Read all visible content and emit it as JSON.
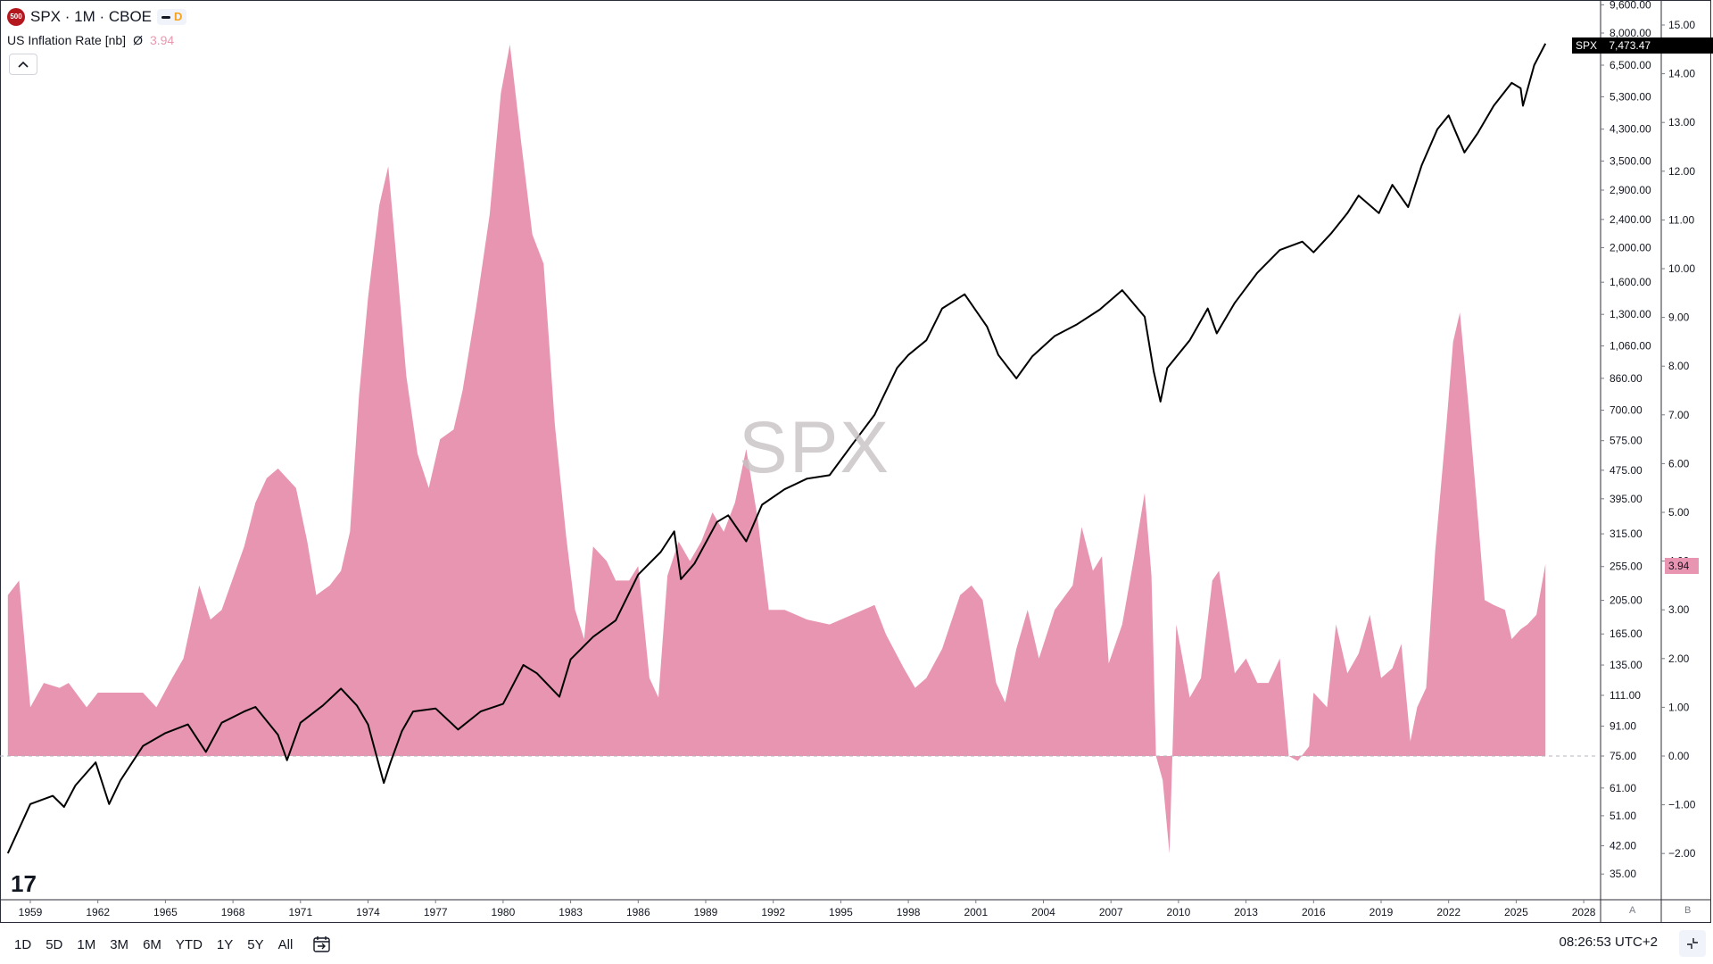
{
  "legend": {
    "symbol": "SPX · 1M · CBOE",
    "logo_text": "500",
    "chip_d": "D",
    "indicator_name": "US Inflation Rate [nb]",
    "indicator_symbol": "Ø",
    "indicator_value": "3.94",
    "collapse_icon": "chevron-up-icon"
  },
  "watermark": "SPX",
  "tv_logo": "17",
  "price_tag": {
    "symbol": "SPX",
    "value": "7,473.47"
  },
  "inflation_tag": "3.94",
  "scale_labels": {
    "a": "A",
    "b": "B"
  },
  "timeframes": [
    "1D",
    "5D",
    "1M",
    "3M",
    "6M",
    "YTD",
    "1Y",
    "5Y",
    "All"
  ],
  "clock": "08:26:53 UTC+2",
  "colors": {
    "line": "#000000",
    "area": "#e895b2",
    "tag_bg": "#000000",
    "inflation_tag_bg": "#e895b2"
  },
  "chart_data": {
    "type": "line",
    "title": "SPX · 1M · CBOE",
    "x_tick_labels": [
      "1959",
      "1962",
      "1965",
      "1968",
      "1971",
      "1974",
      "1977",
      "1980",
      "1983",
      "1986",
      "1989",
      "1992",
      "1995",
      "1998",
      "2001",
      "2004",
      "2007",
      "2010",
      "2013",
      "2016",
      "2019",
      "2022",
      "2025",
      "2028"
    ],
    "left_axis": {
      "scale": "log",
      "tick_labels": [
        "9,600.00",
        "8,000.00",
        "6,500.00",
        "5,300.00",
        "4,300.00",
        "3,500.00",
        "2,900.00",
        "2,400.00",
        "2,000.00",
        "1,600.00",
        "1,300.00",
        "1,060.00",
        "860.00",
        "700.00",
        "575.00",
        "475.00",
        "395.00",
        "315.00",
        "255.00",
        "205.00",
        "165.00",
        "135.00",
        "111.00",
        "91.00",
        "75.00",
        "61.00",
        "51.00",
        "42.00",
        "35.00"
      ]
    },
    "right_axis": {
      "scale": "linear",
      "range": [
        -2.0,
        15.0
      ],
      "tick_labels": [
        "15.00",
        "14.00",
        "13.00",
        "12.00",
        "11.00",
        "10.00",
        "9.00",
        "8.00",
        "7.00",
        "6.00",
        "5.00",
        "4.00",
        "3.00",
        "2.00",
        "1.00",
        "0.00",
        "−1.00",
        "−2.00"
      ]
    },
    "series": [
      {
        "name": "SPX",
        "type": "line",
        "axis": "left",
        "points": [
          [
            1958.0,
            40
          ],
          [
            1959.0,
            55
          ],
          [
            1960.0,
            58
          ],
          [
            1960.5,
            54
          ],
          [
            1961.0,
            62
          ],
          [
            1961.9,
            72
          ],
          [
            1962.5,
            55
          ],
          [
            1963.0,
            64
          ],
          [
            1964.0,
            80
          ],
          [
            1965.0,
            87
          ],
          [
            1966.0,
            92
          ],
          [
            1966.8,
            77
          ],
          [
            1967.5,
            93
          ],
          [
            1968.5,
            100
          ],
          [
            1969.0,
            103
          ],
          [
            1970.0,
            86
          ],
          [
            1970.4,
            73
          ],
          [
            1971.0,
            93
          ],
          [
            1972.0,
            104
          ],
          [
            1972.8,
            116
          ],
          [
            1973.5,
            104
          ],
          [
            1974.0,
            92
          ],
          [
            1974.7,
            63
          ],
          [
            1975.0,
            72
          ],
          [
            1975.5,
            88
          ],
          [
            1976.0,
            100
          ],
          [
            1977.0,
            102
          ],
          [
            1978.0,
            89
          ],
          [
            1979.0,
            100
          ],
          [
            1980.0,
            105
          ],
          [
            1980.9,
            135
          ],
          [
            1981.5,
            128
          ],
          [
            1982.5,
            110
          ],
          [
            1983.0,
            140
          ],
          [
            1984.0,
            162
          ],
          [
            1985.0,
            180
          ],
          [
            1986.0,
            242
          ],
          [
            1987.0,
            280
          ],
          [
            1987.6,
            320
          ],
          [
            1987.9,
            235
          ],
          [
            1988.5,
            260
          ],
          [
            1989.5,
            340
          ],
          [
            1990.0,
            355
          ],
          [
            1990.8,
            300
          ],
          [
            1991.5,
            380
          ],
          [
            1992.5,
            420
          ],
          [
            1993.5,
            450
          ],
          [
            1994.5,
            460
          ],
          [
            1995.5,
            560
          ],
          [
            1996.5,
            680
          ],
          [
            1997.5,
            920
          ],
          [
            1998.0,
            1000
          ],
          [
            1998.8,
            1100
          ],
          [
            1999.5,
            1350
          ],
          [
            2000.5,
            1480
          ],
          [
            2001.5,
            1200
          ],
          [
            2002.0,
            1000
          ],
          [
            2002.8,
            860
          ],
          [
            2003.5,
            990
          ],
          [
            2004.5,
            1130
          ],
          [
            2005.5,
            1220
          ],
          [
            2006.5,
            1340
          ],
          [
            2007.5,
            1520
          ],
          [
            2008.5,
            1280
          ],
          [
            2008.9,
            900
          ],
          [
            2009.2,
            740
          ],
          [
            2009.5,
            920
          ],
          [
            2010.5,
            1100
          ],
          [
            2011.3,
            1350
          ],
          [
            2011.7,
            1150
          ],
          [
            2012.5,
            1400
          ],
          [
            2013.5,
            1700
          ],
          [
            2014.5,
            1970
          ],
          [
            2015.5,
            2080
          ],
          [
            2016.0,
            1940
          ],
          [
            2016.8,
            2200
          ],
          [
            2017.5,
            2500
          ],
          [
            2018.0,
            2800
          ],
          [
            2018.9,
            2500
          ],
          [
            2019.5,
            3000
          ],
          [
            2020.2,
            2600
          ],
          [
            2020.8,
            3400
          ],
          [
            2021.5,
            4300
          ],
          [
            2022.0,
            4700
          ],
          [
            2022.7,
            3700
          ],
          [
            2023.3,
            4200
          ],
          [
            2024.0,
            5000
          ],
          [
            2024.8,
            5800
          ],
          [
            2025.2,
            5600
          ],
          [
            2025.3,
            5000
          ],
          [
            2025.8,
            6500
          ],
          [
            2026.3,
            7473.47
          ]
        ]
      },
      {
        "name": "US Inflation Rate [nb]",
        "type": "area",
        "axis": "right",
        "points": [
          [
            1958.0,
            3.3
          ],
          [
            1958.5,
            3.6
          ],
          [
            1959.0,
            1.0
          ],
          [
            1959.6,
            1.5
          ],
          [
            1960.3,
            1.4
          ],
          [
            1960.7,
            1.5
          ],
          [
            1961.5,
            1.0
          ],
          [
            1962.0,
            1.3
          ],
          [
            1963.0,
            1.3
          ],
          [
            1964.0,
            1.3
          ],
          [
            1964.6,
            1.0
          ],
          [
            1965.3,
            1.6
          ],
          [
            1965.8,
            2.0
          ],
          [
            1966.5,
            3.5
          ],
          [
            1967.0,
            2.8
          ],
          [
            1967.5,
            3.0
          ],
          [
            1968.5,
            4.3
          ],
          [
            1969.0,
            5.2
          ],
          [
            1969.5,
            5.7
          ],
          [
            1970.0,
            5.9
          ],
          [
            1970.8,
            5.5
          ],
          [
            1971.3,
            4.4
          ],
          [
            1971.7,
            3.3
          ],
          [
            1972.3,
            3.5
          ],
          [
            1972.8,
            3.8
          ],
          [
            1973.2,
            4.6
          ],
          [
            1973.6,
            7.4
          ],
          [
            1974.0,
            9.4
          ],
          [
            1974.5,
            11.3
          ],
          [
            1974.9,
            12.1
          ],
          [
            1975.3,
            10.0
          ],
          [
            1975.7,
            7.8
          ],
          [
            1976.2,
            6.2
          ],
          [
            1976.7,
            5.5
          ],
          [
            1977.2,
            6.5
          ],
          [
            1977.8,
            6.7
          ],
          [
            1978.2,
            7.5
          ],
          [
            1978.8,
            9.2
          ],
          [
            1979.4,
            11.1
          ],
          [
            1979.9,
            13.6
          ],
          [
            1980.3,
            14.6
          ],
          [
            1980.8,
            12.6
          ],
          [
            1981.3,
            10.7
          ],
          [
            1981.8,
            10.1
          ],
          [
            1982.3,
            6.8
          ],
          [
            1982.8,
            4.5
          ],
          [
            1983.2,
            3.0
          ],
          [
            1983.6,
            2.4
          ],
          [
            1984.0,
            4.3
          ],
          [
            1984.6,
            4.0
          ],
          [
            1985.0,
            3.6
          ],
          [
            1985.6,
            3.6
          ],
          [
            1986.0,
            3.9
          ],
          [
            1986.5,
            1.6
          ],
          [
            1986.9,
            1.2
          ],
          [
            1987.3,
            3.7
          ],
          [
            1987.8,
            4.4
          ],
          [
            1988.3,
            4.0
          ],
          [
            1988.8,
            4.4
          ],
          [
            1989.3,
            5.0
          ],
          [
            1989.8,
            4.6
          ],
          [
            1990.3,
            5.2
          ],
          [
            1990.8,
            6.3
          ],
          [
            1991.3,
            4.9
          ],
          [
            1991.8,
            3.0
          ],
          [
            1992.5,
            3.0
          ],
          [
            1993.5,
            2.8
          ],
          [
            1994.5,
            2.7
          ],
          [
            1995.5,
            2.9
          ],
          [
            1996.5,
            3.1
          ],
          [
            1997.0,
            2.5
          ],
          [
            1997.8,
            1.8
          ],
          [
            1998.3,
            1.4
          ],
          [
            1998.8,
            1.6
          ],
          [
            1999.5,
            2.2
          ],
          [
            2000.3,
            3.3
          ],
          [
            2000.8,
            3.5
          ],
          [
            2001.3,
            3.2
          ],
          [
            2001.9,
            1.5
          ],
          [
            2002.3,
            1.1
          ],
          [
            2002.8,
            2.2
          ],
          [
            2003.3,
            3.0
          ],
          [
            2003.8,
            2.0
          ],
          [
            2004.5,
            3.0
          ],
          [
            2005.3,
            3.5
          ],
          [
            2005.7,
            4.7
          ],
          [
            2006.2,
            3.8
          ],
          [
            2006.6,
            4.1
          ],
          [
            2006.9,
            1.9
          ],
          [
            2007.5,
            2.7
          ],
          [
            2008.0,
            4.0
          ],
          [
            2008.5,
            5.4
          ],
          [
            2008.8,
            3.7
          ],
          [
            2009.0,
            0.0
          ],
          [
            2009.3,
            -0.5
          ],
          [
            2009.6,
            -2.0
          ],
          [
            2009.9,
            2.7
          ],
          [
            2010.5,
            1.2
          ],
          [
            2011.0,
            1.6
          ],
          [
            2011.5,
            3.6
          ],
          [
            2011.8,
            3.8
          ],
          [
            2012.5,
            1.7
          ],
          [
            2013.0,
            2.0
          ],
          [
            2013.5,
            1.5
          ],
          [
            2014.0,
            1.5
          ],
          [
            2014.5,
            2.0
          ],
          [
            2014.9,
            0.0
          ],
          [
            2015.3,
            -0.1
          ],
          [
            2015.8,
            0.2
          ],
          [
            2016.0,
            1.3
          ],
          [
            2016.6,
            1.0
          ],
          [
            2017.0,
            2.7
          ],
          [
            2017.5,
            1.7
          ],
          [
            2018.0,
            2.1
          ],
          [
            2018.5,
            2.9
          ],
          [
            2019.0,
            1.6
          ],
          [
            2019.5,
            1.8
          ],
          [
            2019.9,
            2.3
          ],
          [
            2020.3,
            0.3
          ],
          [
            2020.6,
            1.0
          ],
          [
            2021.0,
            1.4
          ],
          [
            2021.4,
            4.2
          ],
          [
            2021.9,
            6.8
          ],
          [
            2022.2,
            8.5
          ],
          [
            2022.5,
            9.1
          ],
          [
            2022.9,
            7.1
          ],
          [
            2023.3,
            4.9
          ],
          [
            2023.6,
            3.2
          ],
          [
            2024.0,
            3.1
          ],
          [
            2024.5,
            3.0
          ],
          [
            2024.8,
            2.4
          ],
          [
            2025.2,
            2.6
          ],
          [
            2025.5,
            2.7
          ],
          [
            2025.9,
            2.9
          ],
          [
            2026.3,
            3.94
          ]
        ]
      }
    ],
    "grid": false,
    "baseline": 0.0
  }
}
